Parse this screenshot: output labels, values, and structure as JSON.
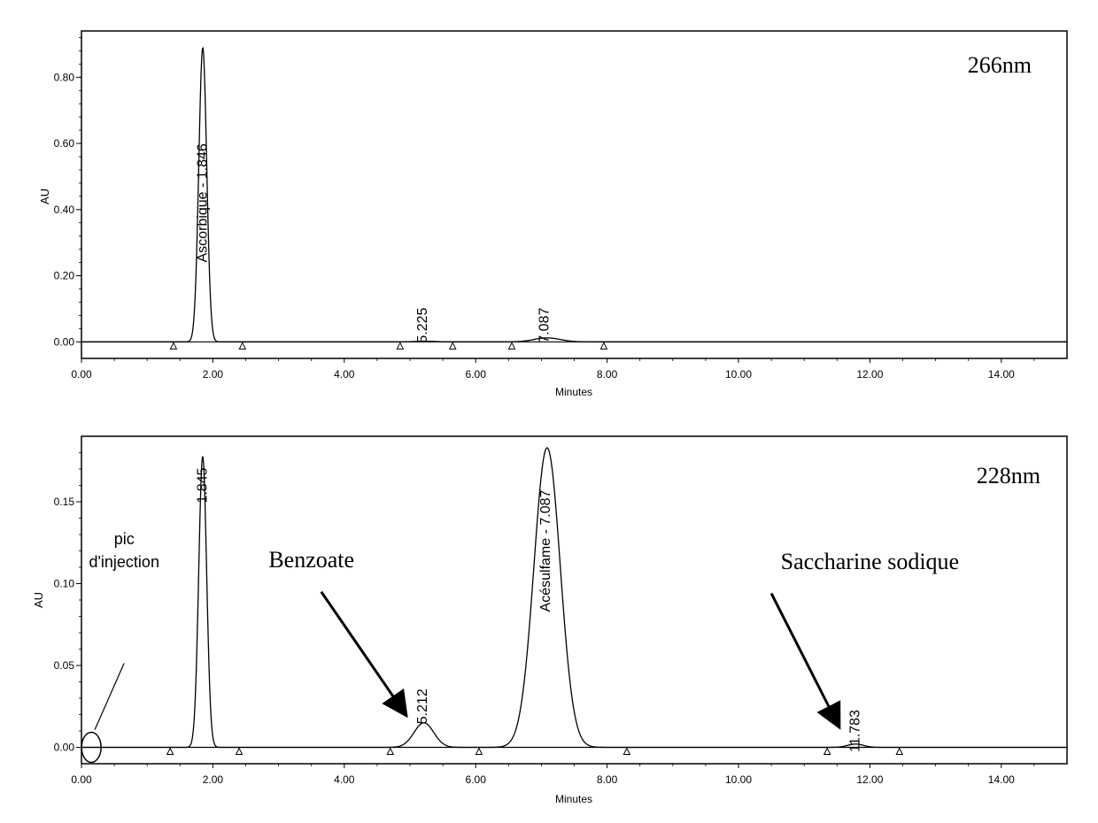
{
  "chart_data": [
    {
      "type": "line",
      "ylabel": "AU",
      "xlabel": "Minutes",
      "wavelength_label": "266nm",
      "xlim": [
        0,
        15
      ],
      "ylim": [
        -0.05,
        0.94
      ],
      "x_tick_labels": [
        "0.00",
        "2.00",
        "4.00",
        "6.00",
        "8.00",
        "10.00",
        "12.00",
        "14.00"
      ],
      "x_tick_values": [
        0,
        2,
        4,
        6,
        8,
        10,
        12,
        14
      ],
      "y_tick_labels": [
        "0.00",
        "0.20",
        "0.40",
        "0.60",
        "0.80"
      ],
      "y_tick_values": [
        0.0,
        0.2,
        0.4,
        0.6,
        0.8
      ],
      "peaks": [
        {
          "rt": 1.846,
          "height": 0.89,
          "width": 0.06
        },
        {
          "rt": 5.225,
          "height": 0.002,
          "width": 0.15
        },
        {
          "rt": 7.087,
          "height": 0.012,
          "width": 0.2
        }
      ],
      "peak_labels": [
        {
          "text": "Ascorbique - 1.846",
          "x": 1.85,
          "y": 0.42
        },
        {
          "text": "5.225",
          "x": 5.2,
          "y": 0.05
        },
        {
          "text": "7.087",
          "x": 7.05,
          "y": 0.05
        }
      ],
      "baseline_markers": [
        1.4,
        2.45,
        4.85,
        5.65,
        6.55,
        7.95
      ]
    },
    {
      "type": "line",
      "ylabel": "AU",
      "xlabel": "Minutes",
      "wavelength_label": "228nm",
      "xlim": [
        0,
        15
      ],
      "ylim": [
        -0.01,
        0.19
      ],
      "x_tick_labels": [
        "0.00",
        "2.00",
        "4.00",
        "6.00",
        "8.00",
        "10.00",
        "12.00",
        "14.00"
      ],
      "x_tick_values": [
        0,
        2,
        4,
        6,
        8,
        10,
        12,
        14
      ],
      "y_tick_labels": [
        "0.00",
        "0.05",
        "0.10",
        "0.15"
      ],
      "y_tick_values": [
        0.0,
        0.05,
        0.1,
        0.15
      ],
      "peaks": [
        {
          "rt": 1.845,
          "height": 0.178,
          "width": 0.06
        },
        {
          "rt": 5.212,
          "height": 0.015,
          "width": 0.15
        },
        {
          "rt": 7.087,
          "height": 0.183,
          "width": 0.2
        },
        {
          "rt": 11.783,
          "height": 0.002,
          "width": 0.12
        }
      ],
      "peak_labels": [
        {
          "text": "1.845",
          "x": 1.85,
          "y": 0.16
        },
        {
          "text": "5.212",
          "x": 5.2,
          "y": 0.025
        },
        {
          "text": "Acésulfame - 7.087",
          "x": 7.07,
          "y": 0.12
        },
        {
          "text": "11.783",
          "x": 11.78,
          "y": 0.01
        }
      ],
      "annotations": [
        {
          "text": "pic",
          "x": 0.65,
          "y": 0.124
        },
        {
          "text": "d'injection",
          "x": 0.65,
          "y": 0.11
        },
        {
          "text": "Benzoate",
          "x": 3.5,
          "y": 0.11
        },
        {
          "text": "Saccharine sodique",
          "x": 12.0,
          "y": 0.109
        }
      ],
      "arrows": [
        {
          "from": [
            3.65,
            0.095
          ],
          "to": [
            4.9,
            0.022
          ]
        },
        {
          "from": [
            10.5,
            0.094
          ],
          "to": [
            11.5,
            0.015
          ]
        }
      ],
      "injection_marker": {
        "x": 0.15,
        "y": 0.0
      },
      "baseline_markers": [
        1.35,
        2.4,
        4.7,
        6.05,
        8.3,
        11.35,
        12.45
      ]
    }
  ]
}
